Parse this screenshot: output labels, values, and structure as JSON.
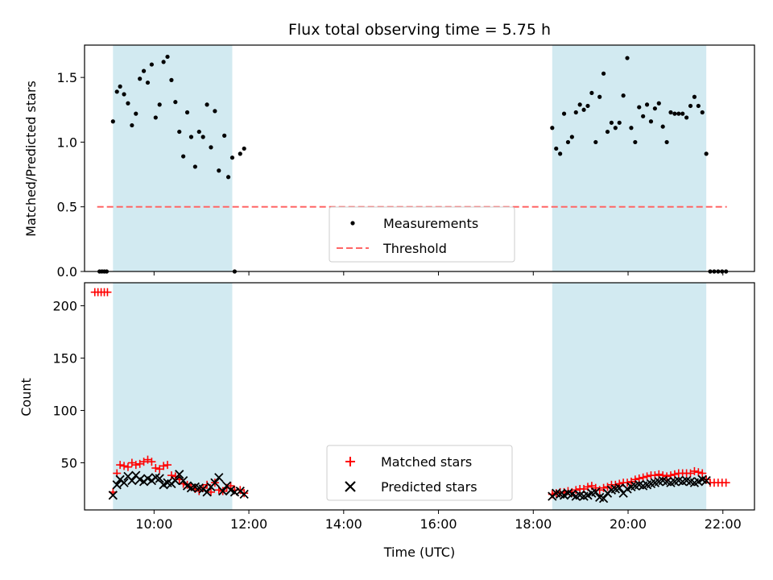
{
  "chart_data": [
    {
      "type": "scatter",
      "panel": "top",
      "title": "Flux total observing time = 5.75 h",
      "xlabel": "",
      "ylabel": "Matched/Predicted stars",
      "xlim": [
        "08:32",
        "22:40"
      ],
      "ylim": [
        0,
        1.75
      ],
      "yticks": [
        0.0,
        0.5,
        1.0,
        1.5
      ],
      "ytick_labels": [
        "0.0",
        "0.5",
        "1.0",
        "1.5"
      ],
      "xticks": [
        "10:00",
        "12:00",
        "14:00",
        "16:00",
        "18:00",
        "20:00",
        "22:00"
      ],
      "shaded_windows": [
        [
          "09:08",
          "11:39"
        ],
        [
          "18:24",
          "21:39"
        ]
      ],
      "shade_color": "#add8e6",
      "legend_position": "lower center",
      "series": [
        {
          "name": "Measurements",
          "color": "#000000",
          "marker": "dot",
          "points": [
            [
              "08:51",
              0.0
            ],
            [
              "08:54",
              0.0
            ],
            [
              "08:57",
              0.0
            ],
            [
              "09:00",
              0.0
            ],
            [
              "09:08",
              1.16
            ],
            [
              "09:13",
              1.39
            ],
            [
              "09:17",
              1.43
            ],
            [
              "09:22",
              1.37
            ],
            [
              "09:27",
              1.3
            ],
            [
              "09:32",
              1.13
            ],
            [
              "09:37",
              1.22
            ],
            [
              "09:42",
              1.49
            ],
            [
              "09:47",
              1.55
            ],
            [
              "09:52",
              1.46
            ],
            [
              "09:57",
              1.6
            ],
            [
              "10:02",
              1.19
            ],
            [
              "10:07",
              1.29
            ],
            [
              "10:12",
              1.62
            ],
            [
              "10:17",
              1.66
            ],
            [
              "10:22",
              1.48
            ],
            [
              "10:27",
              1.31
            ],
            [
              "10:32",
              1.08
            ],
            [
              "10:37",
              0.89
            ],
            [
              "10:42",
              1.23
            ],
            [
              "10:47",
              1.04
            ],
            [
              "10:52",
              0.81
            ],
            [
              "10:57",
              1.08
            ],
            [
              "11:02",
              1.04
            ],
            [
              "11:07",
              1.29
            ],
            [
              "11:12",
              0.96
            ],
            [
              "11:17",
              1.24
            ],
            [
              "11:22",
              0.78
            ],
            [
              "11:29",
              1.05
            ],
            [
              "11:34",
              0.73
            ],
            [
              "11:39",
              0.88
            ],
            [
              "11:42",
              0.0
            ],
            [
              "11:49",
              0.91
            ],
            [
              "11:54",
              0.95
            ],
            [
              "18:24",
              1.11
            ],
            [
              "18:29",
              0.95
            ],
            [
              "18:34",
              0.91
            ],
            [
              "18:39",
              1.22
            ],
            [
              "18:44",
              1.0
            ],
            [
              "18:49",
              1.04
            ],
            [
              "18:54",
              1.23
            ],
            [
              "18:59",
              1.29
            ],
            [
              "19:04",
              1.25
            ],
            [
              "19:09",
              1.28
            ],
            [
              "19:14",
              1.38
            ],
            [
              "19:19",
              1.0
            ],
            [
              "19:24",
              1.35
            ],
            [
              "19:29",
              1.53
            ],
            [
              "19:34",
              1.08
            ],
            [
              "19:39",
              1.15
            ],
            [
              "19:44",
              1.11
            ],
            [
              "19:49",
              1.15
            ],
            [
              "19:54",
              1.36
            ],
            [
              "19:59",
              1.65
            ],
            [
              "20:04",
              1.11
            ],
            [
              "20:09",
              1.0
            ],
            [
              "20:14",
              1.27
            ],
            [
              "20:19",
              1.2
            ],
            [
              "20:24",
              1.29
            ],
            [
              "20:29",
              1.16
            ],
            [
              "20:34",
              1.26
            ],
            [
              "20:39",
              1.3
            ],
            [
              "20:44",
              1.12
            ],
            [
              "20:49",
              1.0
            ],
            [
              "20:54",
              1.23
            ],
            [
              "20:59",
              1.22
            ],
            [
              "21:04",
              1.22
            ],
            [
              "21:09",
              1.22
            ],
            [
              "21:14",
              1.19
            ],
            [
              "21:19",
              1.28
            ],
            [
              "21:24",
              1.35
            ],
            [
              "21:29",
              1.28
            ],
            [
              "21:34",
              1.23
            ],
            [
              "21:39",
              0.91
            ],
            [
              "21:44",
              0.0
            ],
            [
              "21:49",
              0.0
            ],
            [
              "21:54",
              0.0
            ],
            [
              "21:59",
              0.0
            ],
            [
              "22:04",
              0.0
            ]
          ]
        },
        {
          "name": "Threshold",
          "color": "#ff6666",
          "style": "dashed",
          "points": [
            [
              "08:48",
              0.5
            ],
            [
              "22:05",
              0.5
            ]
          ]
        }
      ]
    },
    {
      "type": "scatter",
      "panel": "bottom",
      "title": "",
      "xlabel": "Time (UTC)",
      "ylabel": "Count",
      "xlim": [
        "08:32",
        "22:40"
      ],
      "ylim": [
        5,
        222
      ],
      "yticks": [
        50,
        100,
        150,
        200
      ],
      "ytick_labels": [
        "50",
        "100",
        "150",
        "200"
      ],
      "xticks": [
        "10:00",
        "12:00",
        "14:00",
        "16:00",
        "18:00",
        "20:00",
        "22:00"
      ],
      "xtick_labels": [
        "10:00",
        "12:00",
        "14:00",
        "16:00",
        "18:00",
        "20:00",
        "22:00"
      ],
      "shaded_windows": [
        [
          "09:08",
          "11:39"
        ],
        [
          "18:24",
          "21:39"
        ]
      ],
      "shade_color": "#add8e6",
      "legend_position": "lower center",
      "series": [
        {
          "name": "Matched stars",
          "color": "#ff0000",
          "marker": "plus",
          "points": [
            [
              "08:45",
              213
            ],
            [
              "08:49",
              213
            ],
            [
              "08:53",
              213
            ],
            [
              "08:57",
              213
            ],
            [
              "09:01",
              213
            ],
            [
              "09:08",
              22
            ],
            [
              "09:13",
              40
            ],
            [
              "09:17",
              48
            ],
            [
              "09:22",
              47
            ],
            [
              "09:27",
              46
            ],
            [
              "09:32",
              50
            ],
            [
              "09:37",
              48
            ],
            [
              "09:42",
              49
            ],
            [
              "09:47",
              51
            ],
            [
              "09:52",
              53
            ],
            [
              "09:57",
              51
            ],
            [
              "10:02",
              45
            ],
            [
              "10:07",
              44
            ],
            [
              "10:12",
              47
            ],
            [
              "10:17",
              48
            ],
            [
              "10:22",
              38
            ],
            [
              "10:27",
              37
            ],
            [
              "10:32",
              34
            ],
            [
              "10:37",
              30
            ],
            [
              "10:42",
              29
            ],
            [
              "10:47",
              27
            ],
            [
              "10:52",
              25
            ],
            [
              "10:57",
              23
            ],
            [
              "11:02",
              26
            ],
            [
              "11:07",
              29
            ],
            [
              "11:12",
              22
            ],
            [
              "11:17",
              31
            ],
            [
              "11:22",
              24
            ],
            [
              "11:27",
              23
            ],
            [
              "11:32",
              26
            ],
            [
              "11:37",
              28
            ],
            [
              "11:42",
              24
            ],
            [
              "11:49",
              24
            ],
            [
              "11:54",
              21
            ],
            [
              "18:24",
              20
            ],
            [
              "18:29",
              21
            ],
            [
              "18:34",
              22
            ],
            [
              "18:39",
              22
            ],
            [
              "18:44",
              23
            ],
            [
              "18:49",
              22
            ],
            [
              "18:54",
              24
            ],
            [
              "18:59",
              25
            ],
            [
              "19:04",
              25
            ],
            [
              "19:09",
              27
            ],
            [
              "19:14",
              28
            ],
            [
              "19:19",
              26
            ],
            [
              "19:24",
              24
            ],
            [
              "19:29",
              26
            ],
            [
              "19:34",
              27
            ],
            [
              "19:39",
              29
            ],
            [
              "19:44",
              29
            ],
            [
              "19:49",
              30
            ],
            [
              "19:54",
              31
            ],
            [
              "19:59",
              31
            ],
            [
              "20:04",
              32
            ],
            [
              "20:09",
              34
            ],
            [
              "20:14",
              35
            ],
            [
              "20:19",
              36
            ],
            [
              "20:24",
              37
            ],
            [
              "20:29",
              38
            ],
            [
              "20:34",
              38
            ],
            [
              "20:39",
              39
            ],
            [
              "20:44",
              38
            ],
            [
              "20:49",
              37
            ],
            [
              "20:54",
              38
            ],
            [
              "20:59",
              39
            ],
            [
              "21:04",
              40
            ],
            [
              "21:09",
              40
            ],
            [
              "21:14",
              40
            ],
            [
              "21:19",
              40
            ],
            [
              "21:24",
              42
            ],
            [
              "21:29",
              41
            ],
            [
              "21:34",
              40
            ],
            [
              "21:39",
              34
            ],
            [
              "21:44",
              31
            ],
            [
              "21:49",
              31
            ],
            [
              "21:54",
              31
            ],
            [
              "21:59",
              31
            ],
            [
              "22:04",
              31
            ]
          ]
        },
        {
          "name": "Predicted stars",
          "color": "#000000",
          "marker": "x",
          "points": [
            [
              "09:08",
              19
            ],
            [
              "09:13",
              29
            ],
            [
              "09:17",
              34
            ],
            [
              "09:22",
              31
            ],
            [
              "09:27",
              37
            ],
            [
              "09:32",
              33
            ],
            [
              "09:37",
              38
            ],
            [
              "09:42",
              34
            ],
            [
              "09:47",
              32
            ],
            [
              "09:52",
              35
            ],
            [
              "09:57",
              33
            ],
            [
              "10:02",
              36
            ],
            [
              "10:07",
              35
            ],
            [
              "10:12",
              29
            ],
            [
              "10:17",
              31
            ],
            [
              "10:22",
              30
            ],
            [
              "10:27",
              33
            ],
            [
              "10:32",
              39
            ],
            [
              "10:37",
              33
            ],
            [
              "10:42",
              28
            ],
            [
              "10:47",
              26
            ],
            [
              "10:52",
              27
            ],
            [
              "10:57",
              26
            ],
            [
              "11:02",
              25
            ],
            [
              "11:07",
              22
            ],
            [
              "11:12",
              27
            ],
            [
              "11:17",
              31
            ],
            [
              "11:22",
              36
            ],
            [
              "11:27",
              23
            ],
            [
              "11:32",
              28
            ],
            [
              "11:37",
              24
            ],
            [
              "11:42",
              22
            ],
            [
              "11:49",
              23
            ],
            [
              "11:54",
              20
            ],
            [
              "18:24",
              18
            ],
            [
              "18:29",
              21
            ],
            [
              "18:34",
              20
            ],
            [
              "18:39",
              19
            ],
            [
              "18:44",
              21
            ],
            [
              "18:49",
              20
            ],
            [
              "18:54",
              18
            ],
            [
              "18:59",
              19
            ],
            [
              "19:04",
              18
            ],
            [
              "19:09",
              19
            ],
            [
              "19:14",
              21
            ],
            [
              "19:19",
              22
            ],
            [
              "19:24",
              17
            ],
            [
              "19:29",
              16
            ],
            [
              "19:34",
              21
            ],
            [
              "19:39",
              24
            ],
            [
              "19:44",
              25
            ],
            [
              "19:49",
              26
            ],
            [
              "19:54",
              21
            ],
            [
              "19:59",
              25
            ],
            [
              "20:04",
              27
            ],
            [
              "20:09",
              28
            ],
            [
              "20:14",
              29
            ],
            [
              "20:19",
              28
            ],
            [
              "20:24",
              29
            ],
            [
              "20:29",
              30
            ],
            [
              "20:34",
              31
            ],
            [
              "20:39",
              32
            ],
            [
              "20:44",
              33
            ],
            [
              "20:49",
              32
            ],
            [
              "20:54",
              31
            ],
            [
              "20:59",
              32
            ],
            [
              "21:04",
              33
            ],
            [
              "21:09",
              32
            ],
            [
              "21:14",
              33
            ],
            [
              "21:19",
              32
            ],
            [
              "21:24",
              31
            ],
            [
              "21:29",
              32
            ],
            [
              "21:34",
              34
            ],
            [
              "21:39",
              33
            ]
          ]
        }
      ]
    }
  ]
}
